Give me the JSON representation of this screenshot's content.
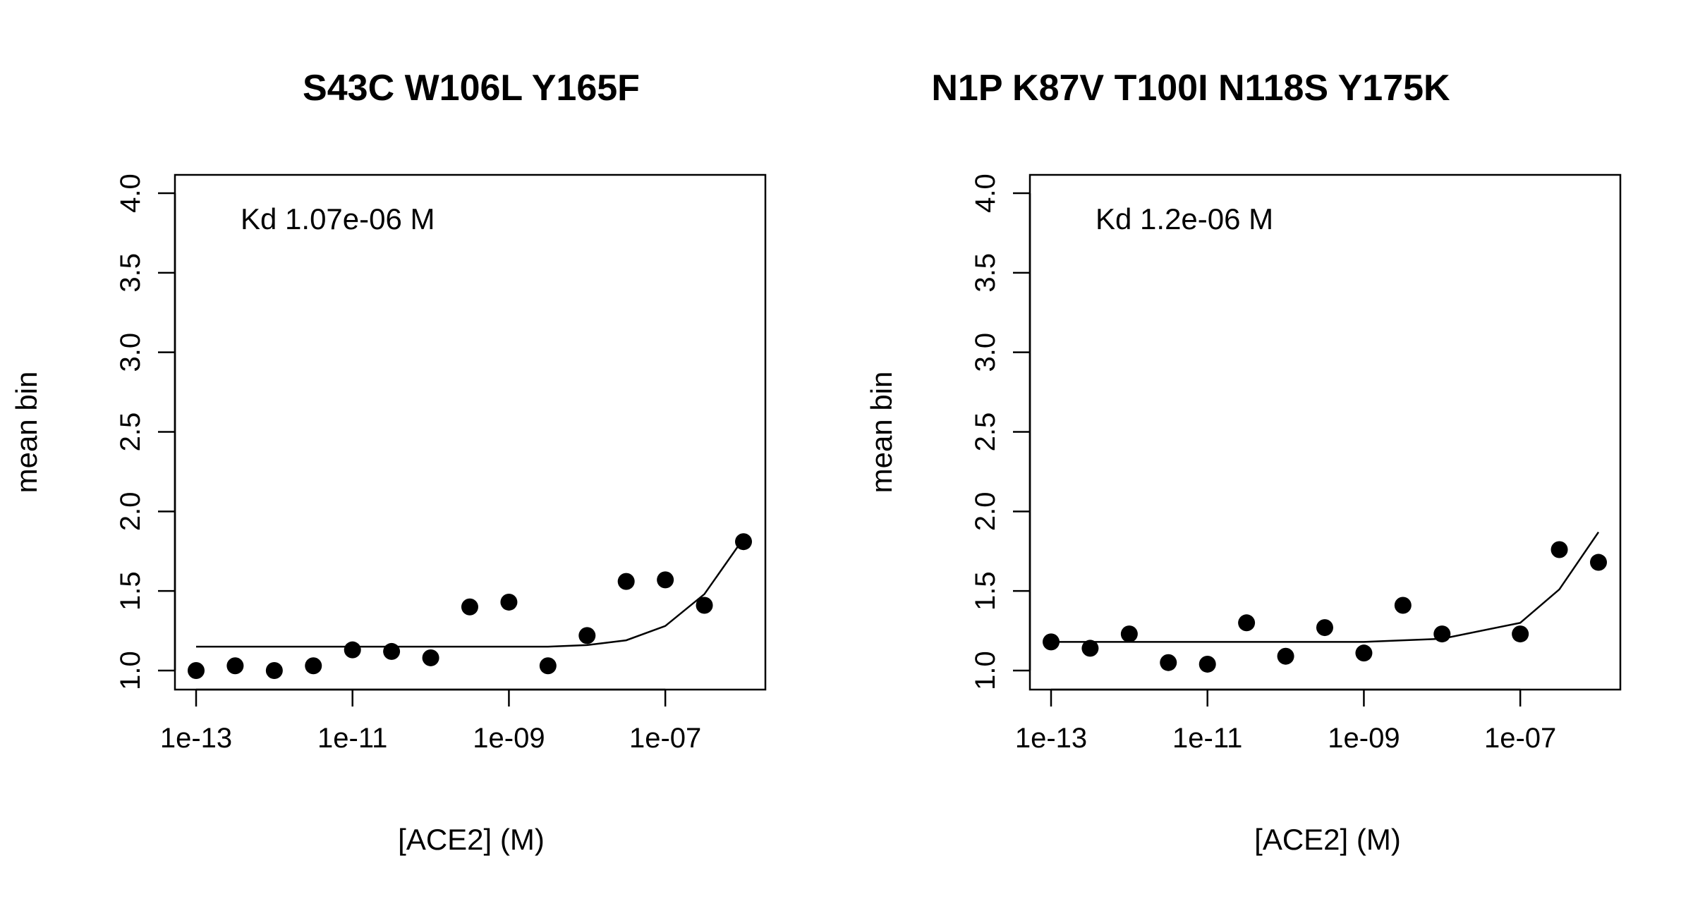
{
  "chart_data": [
    {
      "type": "scatter",
      "title": "S43C W106L Y165F",
      "xlabel": "[ACE2] (M)",
      "ylabel": "mean bin",
      "x_scale": "log10",
      "xlim": [
        1e-13,
        1e-06
      ],
      "ylim": [
        1.0,
        4.0
      ],
      "x_ticks": [
        1e-13,
        1e-11,
        1e-09,
        1e-07
      ],
      "x_tick_labels": [
        "1e-13",
        "1e-11",
        "1e-09",
        "1e-07"
      ],
      "y_ticks": [
        1.0,
        1.5,
        2.0,
        2.5,
        3.0,
        3.5,
        4.0
      ],
      "y_tick_labels": [
        "1.0",
        "1.5",
        "2.0",
        "2.5",
        "3.0",
        "3.5",
        "4.0"
      ],
      "annotation": "Kd 1.07e-06 M",
      "points": {
        "x": [
          1e-13,
          3.16e-13,
          1e-12,
          3.16e-12,
          1e-11,
          3.16e-11,
          1e-10,
          3.16e-10,
          1e-09,
          3.16e-09,
          1e-08,
          3.16e-08,
          1e-07,
          3.16e-07,
          1e-06
        ],
        "y": [
          1.0,
          1.03,
          1.0,
          1.03,
          1.13,
          1.12,
          1.08,
          1.4,
          1.43,
          1.03,
          1.22,
          1.56,
          1.57,
          1.41,
          1.81
        ]
      },
      "fit": {
        "x": [
          1e-13,
          3.16e-13,
          1e-12,
          3.16e-12,
          1e-11,
          3.16e-11,
          1e-10,
          3.16e-10,
          1e-09,
          3.16e-09,
          1e-08,
          3.16e-08,
          1e-07,
          3.16e-07,
          1e-06
        ],
        "y": [
          1.15,
          1.15,
          1.15,
          1.15,
          1.15,
          1.15,
          1.15,
          1.15,
          1.15,
          1.15,
          1.16,
          1.19,
          1.28,
          1.48,
          1.83
        ]
      }
    },
    {
      "type": "scatter",
      "title": "N1P K87V T100I N118S Y175K",
      "xlabel": "[ACE2] (M)",
      "ylabel": "mean bin",
      "x_scale": "log10",
      "xlim": [
        1e-13,
        1e-06
      ],
      "ylim": [
        1.0,
        4.0
      ],
      "x_ticks": [
        1e-13,
        1e-11,
        1e-09,
        1e-07
      ],
      "x_tick_labels": [
        "1e-13",
        "1e-11",
        "1e-09",
        "1e-07"
      ],
      "y_ticks": [
        1.0,
        1.5,
        2.0,
        2.5,
        3.0,
        3.5,
        4.0
      ],
      "y_tick_labels": [
        "1.0",
        "1.5",
        "2.0",
        "2.5",
        "3.0",
        "3.5",
        "4.0"
      ],
      "annotation": "Kd 1.2e-06 M",
      "points": {
        "x": [
          1e-13,
          3.16e-13,
          1e-12,
          3.16e-12,
          1e-11,
          3.16e-11,
          1e-10,
          3.16e-10,
          1e-09,
          3.16e-09,
          1e-08,
          1e-07,
          3.16e-07,
          1e-06
        ],
        "y": [
          1.18,
          1.14,
          1.23,
          1.05,
          1.04,
          1.3,
          1.09,
          1.27,
          1.11,
          1.41,
          1.23,
          1.23,
          1.76,
          1.68
        ]
      },
      "fit": {
        "x": [
          1e-13,
          3.16e-13,
          1e-12,
          3.16e-12,
          1e-11,
          3.16e-11,
          1e-10,
          3.16e-10,
          1e-09,
          3.16e-09,
          1e-08,
          1e-07,
          3.16e-07,
          1e-06
        ],
        "y": [
          1.18,
          1.18,
          1.18,
          1.18,
          1.18,
          1.18,
          1.18,
          1.18,
          1.18,
          1.19,
          1.2,
          1.3,
          1.51,
          1.87
        ]
      }
    }
  ]
}
